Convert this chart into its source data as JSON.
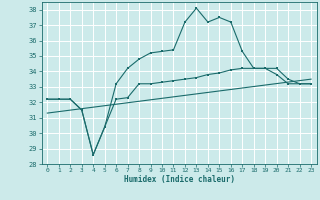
{
  "xlabel": "Humidex (Indice chaleur)",
  "bg_color": "#cceaea",
  "grid_color": "#b0d8d8",
  "line_color": "#1a6b6b",
  "xlim": [
    -0.5,
    23.5
  ],
  "ylim": [
    28,
    38.5
  ],
  "yticks": [
    28,
    29,
    30,
    31,
    32,
    33,
    34,
    35,
    36,
    37,
    38
  ],
  "xticks": [
    0,
    1,
    2,
    3,
    4,
    5,
    6,
    7,
    8,
    9,
    10,
    11,
    12,
    13,
    14,
    15,
    16,
    17,
    18,
    19,
    20,
    21,
    22,
    23
  ],
  "curve1_x": [
    0,
    1,
    2,
    3,
    4,
    5,
    6,
    7,
    8,
    9,
    10,
    11,
    12,
    13,
    14,
    15,
    16,
    17,
    18,
    19,
    20,
    21,
    22,
    23
  ],
  "curve1_y": [
    32.2,
    32.2,
    32.2,
    31.5,
    28.6,
    30.4,
    33.2,
    34.2,
    34.8,
    35.2,
    35.3,
    35.4,
    37.2,
    38.1,
    37.2,
    37.5,
    37.2,
    35.3,
    34.2,
    34.2,
    33.8,
    33.2,
    33.2,
    33.2
  ],
  "curve2_x": [
    0,
    1,
    2,
    3,
    4,
    5,
    6,
    7,
    8,
    9,
    10,
    11,
    12,
    13,
    14,
    15,
    16,
    17,
    18,
    19,
    20,
    21,
    22,
    23
  ],
  "curve2_y": [
    32.2,
    32.2,
    32.2,
    31.5,
    28.6,
    30.4,
    32.2,
    32.3,
    33.2,
    33.2,
    33.3,
    33.4,
    33.5,
    33.6,
    33.8,
    33.9,
    34.1,
    34.2,
    34.2,
    34.2,
    34.2,
    33.5,
    33.2,
    33.2
  ],
  "curve3_x": [
    0,
    23
  ],
  "curve3_y": [
    31.3,
    33.5
  ]
}
